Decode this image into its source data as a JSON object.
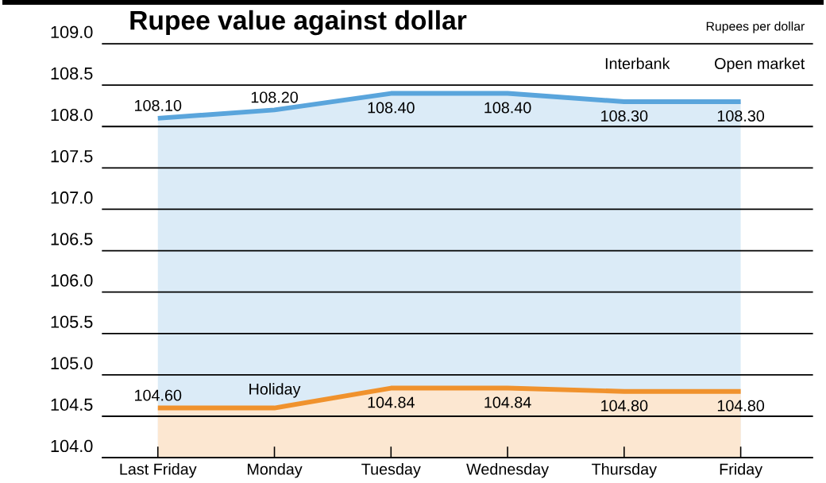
{
  "chart_data": {
    "type": "area",
    "title": "Rupee value against dollar",
    "categories": [
      "Last Friday",
      "Monday",
      "Tuesday",
      "Wednesday",
      "Thursday",
      "Friday"
    ],
    "series": [
      {
        "color": "#5aa5dc",
        "values": [
          108.1,
          108.2,
          108.4,
          108.4,
          108.3,
          108.3
        ],
        "value_labels": [
          "108.10",
          "108.20",
          "108.40",
          "108.40",
          "108.30",
          "108.30"
        ]
      },
      {
        "color": "#f0922d",
        "values": [
          104.6,
          104.6,
          104.84,
          104.84,
          104.8,
          104.8
        ],
        "value_labels": [
          "104.60",
          null,
          "104.84",
          "104.84",
          "104.80",
          "104.80"
        ]
      }
    ],
    "ylim": [
      104.0,
      109.5
    ],
    "yticks": [
      {
        "value": 104.0,
        "label": "104.0"
      },
      {
        "value": 104.5,
        "label": "104.5"
      },
      {
        "value": 105.0,
        "label": "105.0"
      },
      {
        "value": 105.5,
        "label": "105.5"
      },
      {
        "value": 106.0,
        "label": "106.0"
      },
      {
        "value": 106.5,
        "label": "106.5"
      },
      {
        "value": 107.0,
        "label": "107.0"
      },
      {
        "value": 107.5,
        "label": "107.5"
      },
      {
        "value": 108.0,
        "label": "108.0"
      },
      {
        "value": 108.5,
        "label": "108.5"
      },
      {
        "value": 109.0,
        "label": "109.0"
      }
    ],
    "grid": "y",
    "annotations": [
      "Rupees per dollar",
      "Interbank",
      "Open market",
      {
        "text": "Holiday",
        "x": "Monday",
        "y": 104.6
      }
    ]
  }
}
